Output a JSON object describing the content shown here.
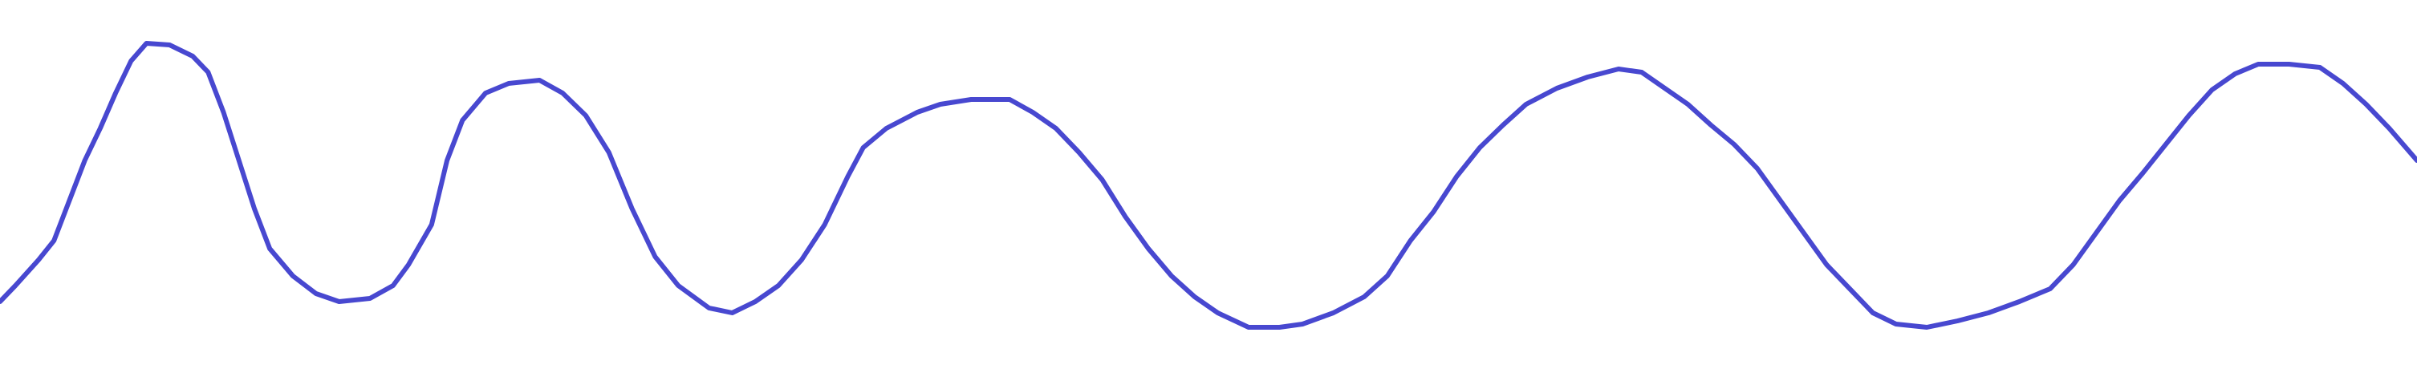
{
  "chart_data": {
    "type": "line",
    "x": [
      0,
      10,
      25,
      35,
      45,
      55,
      65,
      75,
      85,
      95,
      110,
      125,
      135,
      145,
      155,
      165,
      175,
      190,
      205,
      220,
      240,
      255,
      265,
      280,
      290,
      300,
      315,
      330,
      350,
      365,
      380,
      395,
      410,
      425,
      440,
      460,
      475,
      490,
      505,
      520,
      535,
      550,
      560,
      575,
      595,
      610,
      630,
      655,
      670,
      685,
      700,
      715,
      730,
      745,
      760,
      775,
      790,
      810,
      830,
      845,
      865,
      885,
      900,
      915,
      930,
      945,
      960,
      975,
      990,
      1010,
      1030,
      1050,
      1065,
      1080,
      1095,
      1110,
      1125,
      1140,
      1155,
      1170,
      1185,
      1200,
      1215,
      1230,
      1250,
      1270,
      1290,
      1310,
      1330,
      1345,
      1360,
      1375,
      1390,
      1405,
      1420,
      1435,
      1450,
      1465,
      1485,
      1505,
      1520,
      1535,
      1550,
      1568
    ],
    "values": [
      42,
      52,
      68,
      80,
      105,
      130,
      150,
      172,
      192,
      203,
      202,
      195,
      185,
      160,
      130,
      100,
      75,
      58,
      47,
      42,
      44,
      52,
      65,
      90,
      130,
      155,
      172,
      178,
      180,
      172,
      158,
      135,
      100,
      70,
      52,
      38,
      35,
      42,
      52,
      68,
      90,
      120,
      138,
      150,
      160,
      165,
      168,
      168,
      160,
      150,
      135,
      118,
      95,
      75,
      58,
      45,
      35,
      26,
      26,
      28,
      35,
      45,
      58,
      80,
      98,
      120,
      138,
      152,
      165,
      175,
      182,
      187,
      185,
      175,
      165,
      152,
      140,
      125,
      105,
      85,
      65,
      50,
      35,
      28,
      26,
      30,
      35,
      42,
      50,
      65,
      85,
      105,
      122,
      140,
      158,
      174,
      184,
      190,
      190,
      188,
      178,
      165,
      150,
      130
    ],
    "xlim": [
      0,
      1568
    ],
    "ylim": [
      0,
      230
    ],
    "color": "#4848d0"
  }
}
